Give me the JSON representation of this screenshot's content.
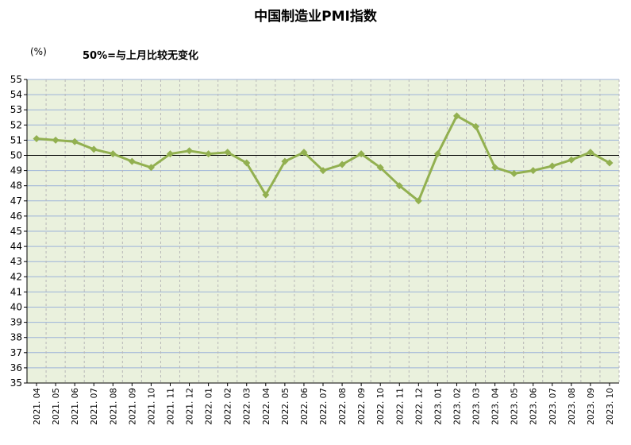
{
  "chart_data": {
    "type": "line",
    "title": "中国制造业PMI指数",
    "unit_label": "(%)",
    "annotation": "50%=与上月比较无变化",
    "categories": [
      "2021. 04",
      "2021. 05",
      "2021. 06",
      "2021. 07",
      "2021. 08",
      "2021. 09",
      "2021. 10",
      "2021. 11",
      "2021. 12",
      "2022. 01",
      "2022. 02",
      "2022. 03",
      "2022. 04",
      "2022. 05",
      "2022. 06",
      "2022. 07",
      "2022. 08",
      "2022. 09",
      "2022. 10",
      "2022. 11",
      "2022. 12",
      "2023. 01",
      "2023. 02",
      "2023. 03",
      "2023. 04",
      "2023. 05",
      "2023. 06",
      "2023. 07",
      "2023. 08",
      "2023. 09",
      "2023. 10"
    ],
    "values": [
      51.1,
      51.0,
      50.9,
      50.4,
      50.1,
      49.6,
      49.2,
      50.1,
      50.3,
      50.1,
      50.2,
      49.5,
      47.4,
      49.6,
      50.2,
      49.0,
      49.4,
      50.1,
      49.2,
      48.0,
      47.0,
      50.1,
      52.6,
      51.9,
      49.2,
      48.8,
      49.0,
      49.3,
      49.7,
      50.2,
      49.5
    ],
    "ylim": [
      35,
      55
    ],
    "yticks": [
      35,
      36,
      37,
      38,
      39,
      40,
      41,
      42,
      43,
      44,
      45,
      46,
      47,
      48,
      49,
      50,
      51,
      52,
      53,
      54,
      55
    ],
    "reference_line": 50,
    "grid": true,
    "colors": {
      "line": "#92b050",
      "marker": "#92b050",
      "plot_bg": "#eaf1dd",
      "grid": "#9db3d9",
      "ref_line": "#000000"
    }
  }
}
